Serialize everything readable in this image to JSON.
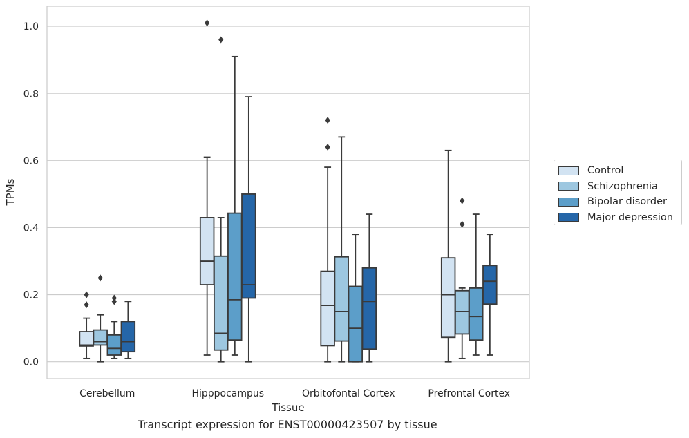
{
  "caption": "Transcript expression for ENST00000423507 by tissue",
  "chart_data": {
    "type": "box",
    "title": "",
    "xlabel": "Tissue",
    "ylabel": "TPMs",
    "ylim": [
      -0.05,
      1.06
    ],
    "yticks": [
      "0.0",
      "0.2",
      "0.4",
      "0.6",
      "0.8",
      "1.0"
    ],
    "grid": "horizontal",
    "legend_position": "right",
    "categories": [
      "Cerebellum",
      "Hipppocampus",
      "Orbitofontal Cortex",
      "Prefrontal Cortex"
    ],
    "series": [
      {
        "name": "Control",
        "color": "#d2e3f2",
        "boxes": [
          {
            "whislo": 0.01,
            "q1": 0.047,
            "med": 0.05,
            "q3": 0.09,
            "whishi": 0.13,
            "fliers": [
              0.17,
              0.2
            ]
          },
          {
            "whislo": 0.02,
            "q1": 0.23,
            "med": 0.3,
            "q3": 0.43,
            "whishi": 0.61,
            "fliers": [
              1.01
            ]
          },
          {
            "whislo": 0.0,
            "q1": 0.048,
            "med": 0.168,
            "q3": 0.27,
            "whishi": 0.58,
            "fliers": [
              0.64,
              0.72
            ]
          },
          {
            "whislo": 0.0,
            "q1": 0.073,
            "med": 0.2,
            "q3": 0.31,
            "whishi": 0.63,
            "fliers": []
          }
        ]
      },
      {
        "name": "Schizophrenia",
        "color": "#9dc7e0",
        "boxes": [
          {
            "whislo": 0.0,
            "q1": 0.05,
            "med": 0.06,
            "q3": 0.095,
            "whishi": 0.14,
            "fliers": [
              0.25
            ]
          },
          {
            "whislo": 0.0,
            "q1": 0.035,
            "med": 0.085,
            "q3": 0.315,
            "whishi": 0.43,
            "fliers": [
              0.96
            ]
          },
          {
            "whislo": 0.0,
            "q1": 0.062,
            "med": 0.15,
            "q3": 0.313,
            "whishi": 0.67,
            "fliers": []
          },
          {
            "whislo": 0.01,
            "q1": 0.083,
            "med": 0.15,
            "q3": 0.212,
            "whishi": 0.22,
            "fliers": [
              0.41,
              0.48
            ]
          }
        ]
      },
      {
        "name": "Bipolar disorder",
        "color": "#5c9ec9",
        "boxes": [
          {
            "whislo": 0.01,
            "q1": 0.02,
            "med": 0.04,
            "q3": 0.08,
            "whishi": 0.12,
            "fliers": [
              0.18,
              0.19
            ]
          },
          {
            "whislo": 0.02,
            "q1": 0.065,
            "med": 0.185,
            "q3": 0.443,
            "whishi": 0.91,
            "fliers": []
          },
          {
            "whislo": 0.0,
            "q1": 0.0,
            "med": 0.1,
            "q3": 0.225,
            "whishi": 0.38,
            "fliers": []
          },
          {
            "whislo": 0.02,
            "q1": 0.065,
            "med": 0.135,
            "q3": 0.22,
            "whishi": 0.44,
            "fliers": []
          }
        ]
      },
      {
        "name": "Major depression",
        "color": "#2566a8",
        "boxes": [
          {
            "whislo": 0.01,
            "q1": 0.03,
            "med": 0.06,
            "q3": 0.12,
            "whishi": 0.18,
            "fliers": []
          },
          {
            "whislo": 0.0,
            "q1": 0.19,
            "med": 0.23,
            "q3": 0.5,
            "whishi": 0.79,
            "fliers": []
          },
          {
            "whislo": 0.0,
            "q1": 0.038,
            "med": 0.18,
            "q3": 0.28,
            "whishi": 0.44,
            "fliers": []
          },
          {
            "whislo": 0.02,
            "q1": 0.172,
            "med": 0.24,
            "q3": 0.287,
            "whishi": 0.38,
            "fliers": []
          }
        ]
      }
    ]
  }
}
